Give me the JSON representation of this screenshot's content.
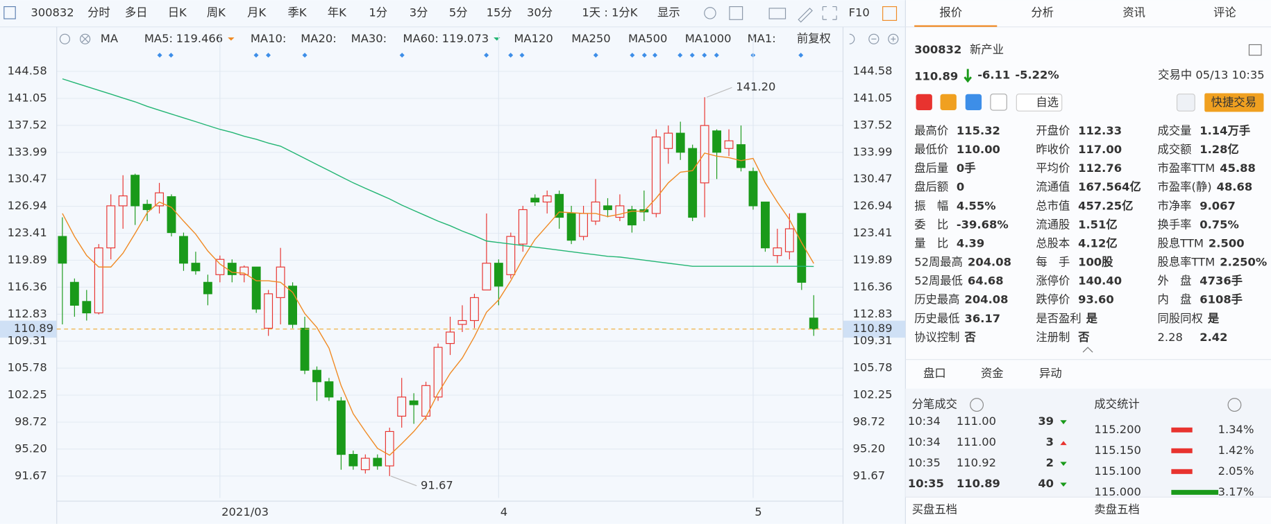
{
  "toolbar": {
    "code": "300832",
    "periods": [
      "分时",
      "多日",
      "日K",
      "周K",
      "月K",
      "季K",
      "年K",
      "1分",
      "3分",
      "5分",
      "15分",
      "30分"
    ],
    "active": "日K",
    "range": "1天 : 1分K",
    "display": "显示",
    "f10": "F10"
  },
  "chart_data": {
    "type": "candlestick",
    "indicator": "MA",
    "adjust": "前复权",
    "ma_inactive": [
      "MA10:",
      "MA20:",
      "MA30:",
      "MA120",
      "MA250",
      "MA500",
      "MA1000",
      "MA1:"
    ],
    "categories": [
      null,
      null,
      null,
      null,
      null,
      null,
      null,
      null,
      null,
      null,
      null,
      null,
      null,
      "2021/03",
      null,
      null,
      null,
      null,
      null,
      null,
      null,
      null,
      null,
      null,
      null,
      null,
      null,
      null,
      null,
      null,
      null,
      null,
      null,
      null,
      null,
      null,
      "4",
      null,
      null,
      null,
      null,
      null,
      null,
      null,
      null,
      null,
      null,
      null,
      null,
      null,
      null,
      null,
      null,
      null,
      null,
      null,
      null,
      "5",
      null,
      null,
      null,
      null,
      null
    ],
    "open": [
      123.0,
      117.0,
      114.5,
      113.0,
      121.5,
      127.0,
      131.0,
      127.2,
      127.0,
      128.2,
      123.0,
      119.5,
      117.0,
      118.0,
      119.5,
      118.0,
      119.0,
      111.0,
      115.0,
      116.5,
      111.0,
      105.5,
      104.0,
      101.5,
      94.5,
      92.5,
      94.0,
      93.0,
      99.5,
      101.5,
      99.5,
      102.0,
      109.0,
      111.5,
      112.0,
      116.0,
      119.5,
      118.0,
      122.0,
      128.0,
      127.5,
      128.5,
      126.0,
      123.0,
      125.0,
      127.0,
      125.5,
      126.5,
      126.5,
      126.0,
      134.5,
      136.5,
      134.5,
      130.0,
      136.8,
      134.5,
      135.0,
      131.5,
      127.5,
      120.5,
      121.0,
      126.0,
      112.33
    ],
    "high": [
      125.5,
      117.5,
      116.0,
      122.0,
      128.5,
      131.0,
      131.2,
      127.8,
      130.0,
      128.5,
      123.5,
      121.0,
      118.0,
      120.5,
      120.0,
      119.2,
      119.0,
      116.0,
      121.5,
      117.0,
      112.5,
      106.0,
      104.5,
      102.0,
      95.0,
      94.5,
      94.5,
      98.0,
      104.5,
      102.5,
      104.0,
      109.0,
      112.5,
      114.0,
      115.5,
      126.0,
      120.0,
      123.5,
      127.0,
      128.5,
      129.0,
      129.0,
      127.0,
      127.0,
      130.5,
      128.0,
      128.5,
      127.0,
      129.0,
      137.0,
      137.5,
      138.0,
      135.0,
      141.2,
      137.0,
      137.0,
      137.5,
      132.0,
      127.5,
      124.0,
      126.0,
      126.0,
      115.32
    ],
    "low": [
      111.5,
      112.5,
      112.0,
      112.8,
      120.0,
      124.0,
      124.5,
      125.0,
      126.0,
      123.0,
      118.5,
      118.0,
      114.0,
      117.0,
      117.0,
      117.0,
      113.0,
      110.0,
      111.5,
      111.0,
      105.0,
      101.5,
      101.5,
      92.5,
      92.5,
      92.0,
      92.5,
      91.67,
      98.0,
      98.5,
      99.0,
      101.5,
      107.5,
      110.5,
      111.0,
      116.0,
      114.0,
      117.5,
      121.0,
      127.0,
      126.0,
      124.0,
      122.0,
      122.5,
      124.5,
      125.5,
      125.0,
      123.5,
      125.0,
      125.5,
      132.5,
      133.0,
      125.0,
      125.5,
      130.5,
      133.5,
      131.5,
      126.5,
      121.0,
      119.5,
      120.0,
      116.0,
      110.0
    ],
    "close": [
      119.5,
      114.0,
      113.0,
      121.5,
      127.0,
      128.3,
      127.0,
      126.5,
      128.7,
      123.5,
      119.5,
      118.5,
      115.5,
      120.0,
      118.0,
      119.0,
      113.5,
      115.5,
      119.0,
      111.5,
      105.5,
      104.0,
      102.0,
      94.5,
      93.0,
      94.0,
      93.0,
      97.5,
      102.0,
      101.0,
      103.5,
      108.5,
      110.5,
      112.0,
      115.0,
      119.5,
      116.5,
      123.0,
      126.5,
      127.5,
      128.3,
      125.5,
      122.5,
      126.0,
      127.5,
      126.5,
      127.0,
      124.5,
      126.2,
      136.0,
      136.5,
      134.0,
      125.5,
      137.5,
      134.0,
      135.5,
      132.0,
      127.0,
      121.5,
      121.5,
      124.0,
      117.0,
      110.89
    ],
    "up_color": "#e8332f",
    "down_color": "#1a9a1a",
    "series": [
      {
        "name": "MA5:",
        "color": "#f08a24",
        "values": [
          126.0,
          123.0,
          120.5,
          119.0,
          119.0,
          120.8,
          123.4,
          126.1,
          127.5,
          126.8,
          125.0,
          123.3,
          121.1,
          119.4,
          118.3,
          118.2,
          117.2,
          117.2,
          117.0,
          115.7,
          112.9,
          111.1,
          108.4,
          103.5,
          99.8,
          97.5,
          95.3,
          94.4,
          95.9,
          97.5,
          99.4,
          102.5,
          105.1,
          107.1,
          109.9,
          113.1,
          114.7,
          117.2,
          120.1,
          122.6,
          124.4,
          126.2,
          126.1,
          126.0,
          126.0,
          125.6,
          125.9,
          126.3,
          126.3,
          128.0,
          130.0,
          131.4,
          131.6,
          133.9,
          133.5,
          133.3,
          132.9,
          133.2,
          130.0,
          127.5,
          125.2,
          122.2,
          119.466
        ]
      },
      {
        "name": "MA60:",
        "color": "#22b573",
        "values": [
          143.6,
          143.1,
          142.6,
          142.1,
          141.6,
          141.1,
          140.6,
          140.0,
          139.5,
          139.0,
          138.5,
          138.0,
          137.5,
          137.0,
          136.6,
          136.1,
          135.7,
          135.2,
          134.8,
          134.0,
          133.2,
          132.4,
          131.6,
          130.8,
          130.0,
          129.3,
          128.6,
          127.9,
          127.1,
          126.4,
          125.7,
          125.0,
          124.4,
          123.7,
          123.1,
          122.4,
          122.2,
          122.0,
          121.8,
          121.6,
          121.4,
          121.2,
          121.0,
          120.8,
          120.6,
          120.4,
          120.3,
          120.1,
          119.9,
          119.7,
          119.5,
          119.3,
          119.1,
          119.1,
          119.1,
          119.1,
          119.1,
          119.1,
          119.1,
          119.1,
          119.1,
          119.1,
          119.073
        ]
      }
    ],
    "current_price": 110.89,
    "annotations": [
      {
        "value": 141.2,
        "label": "141.20"
      },
      91.67
    ],
    "ylim": [
      88.81,
      147.01
    ],
    "yticks": [
      91.67,
      {
        "value": 95.2,
        "label": "95.20"
      },
      98.72,
      102.25,
      105.78,
      109.31,
      112.83,
      116.36,
      119.89,
      123.41,
      126.94,
      130.47,
      133.99,
      137.52,
      141.05,
      144.58
    ],
    "grid": true
  },
  "quote": {
    "tabs": [
      "报价",
      "分析",
      "资讯",
      "评论"
    ],
    "code": "300832",
    "name": "新产业",
    "price": "110.89",
    "change": "-6.11",
    "pct": "-5.22%",
    "status": "交易中 05/13 10:35",
    "watch": "自选",
    "trade": "快捷交易",
    "fields": [
      [
        {
          "label": "最高价",
          "value": "115.32",
          "color": "#1a9a1a"
        },
        {
          "label": "开盘价",
          "value": "112.33",
          "color": "#1a9a1a"
        },
        {
          "label": "成交量",
          "value": "1.14万手",
          "color": "#222"
        }
      ],
      [
        {
          "label": "最低价",
          "value": "110.00",
          "color": "#1a9a1a"
        },
        {
          "label": "昨收价",
          "value": "117.00",
          "color": "#222"
        },
        {
          "label": "成交额",
          "value": "1.28亿",
          "color": "#222"
        }
      ],
      [
        {
          "label": "盘后量",
          "value": "0手",
          "color": "#222"
        },
        {
          "label": "平均价",
          "value": "112.76",
          "color": "#1a9a1a"
        },
        {
          "label": "市盈率TTM",
          "value": "45.88",
          "color": "#222"
        }
      ],
      [
        {
          "label": "盘后额",
          "value": "0",
          "color": "#222"
        },
        {
          "label": "流通值",
          "value": "167.564亿",
          "color": "#222"
        },
        {
          "label": "市盈率(静)",
          "value": "48.68",
          "color": "#222"
        }
      ],
      [
        {
          "label": "振　幅",
          "value": "4.55%",
          "color": "#222"
        },
        {
          "label": "总市值",
          "value": "457.25亿",
          "color": "#222"
        },
        {
          "label": "市净率",
          "value": "9.067",
          "color": "#222"
        }
      ],
      [
        {
          "label": "委　比",
          "value": "-39.68%",
          "color": "#1a9a1a"
        },
        {
          "label": "流通股",
          "value": "1.51亿",
          "color": "#222"
        },
        {
          "label": "换手率",
          "value": "0.75%",
          "color": "#222"
        }
      ],
      [
        {
          "label": "量　比",
          "value": "4.39",
          "color": "#222"
        },
        {
          "label": "总股本",
          "value": "4.12亿",
          "color": "#222"
        },
        {
          "label": "股息TTM",
          "value": "2.500",
          "color": "#222"
        }
      ],
      [
        {
          "label": "52周最高",
          "value": "204.08",
          "color": "#e8332f"
        },
        {
          "label": "每　手",
          "value": "100股",
          "color": "#222"
        },
        {
          "label": "股息率TTM",
          "value": "2.250%",
          "color": "#222"
        }
      ],
      [
        {
          "label": "52周最低",
          "value": "64.68",
          "color": "#1a9a1a"
        },
        {
          "label": "涨停价",
          "value": "140.40",
          "color": "#e8332f"
        },
        {
          "label": "外　盘",
          "value": "4736手",
          "color": "#e8332f"
        }
      ],
      [
        {
          "label": "历史最高",
          "value": "204.08",
          "color": "#e8332f"
        },
        {
          "label": "跌停价",
          "value": "93.60",
          "color": "#1a9a1a"
        },
        {
          "label": "内　盘",
          "value": "6108手",
          "color": "#1a9a1a"
        }
      ],
      [
        {
          "label": "历史最低",
          "value": "36.17",
          "color": "#1a9a1a"
        },
        {
          "label": "是否盈利",
          "value": "是",
          "color": "#222"
        },
        {
          "label": "同股同权",
          "value": "是",
          "color": "#222"
        }
      ],
      [
        {
          "label": "协议控制",
          "value": "否",
          "color": "#222"
        },
        {
          "label": "注册制",
          "value": "否",
          "color": "#222"
        },
        {
          "label": "2.28",
          "value": "2.42",
          "color": "#222"
        }
      ]
    ],
    "tabs2": [
      "盘口",
      "资金",
      "异动"
    ],
    "ticks_title": "分笔成交",
    "stats_title": "成交统计",
    "trades": [
      {
        "time": "10:34",
        "price": "111.00",
        "vol": "39",
        "dir": "down"
      },
      {
        "time": "10:34",
        "price": "111.00",
        "vol": "3",
        "dir": "up"
      },
      {
        "time": "10:35",
        "price": "110.92",
        "vol": "2",
        "dir": "down"
      },
      {
        "time": "10:35",
        "price": "110.89",
        "vol": "40",
        "dir": "down"
      }
    ],
    "stats": [
      {
        "price": "115.200",
        "pct": "1.34%"
      },
      {
        "price": "115.150",
        "pct": "1.42%"
      },
      {
        "price": "115.100",
        "pct": "2.05%"
      },
      {
        "price": "115.000",
        "pct": "3.17%"
      }
    ],
    "buy": "买盘五档",
    "sell": "卖盘五档"
  }
}
